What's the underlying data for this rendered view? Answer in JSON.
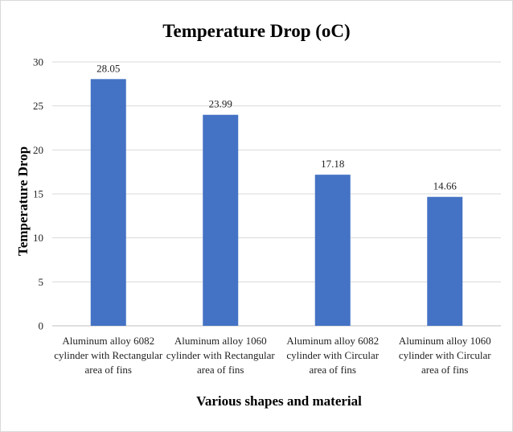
{
  "chart_data": {
    "type": "bar",
    "title": "Temperature Drop (oC)",
    "xlabel": "Various shapes and material",
    "ylabel": "Temperature Drop",
    "categories": [
      [
        "Aluminum alloy 6082",
        "cylinder with Rectangular",
        "area of fins"
      ],
      [
        "Aluminum alloy 1060",
        "cylinder with Rectangular",
        "area of fins"
      ],
      [
        "Aluminum alloy 6082",
        "cylinder with Circular",
        "area of fins"
      ],
      [
        "Aluminum alloy 1060",
        "cylinder with Circular",
        "area of fins"
      ]
    ],
    "values": [
      28.05,
      23.99,
      17.18,
      14.66
    ],
    "data_labels": [
      "28.05",
      "23.99",
      "17.18",
      "14.66"
    ],
    "ylim": [
      0,
      30
    ],
    "yticks": [
      0,
      5,
      10,
      15,
      20,
      25,
      30
    ],
    "grid": true,
    "legend": "none",
    "bar_color": "#4472C4",
    "grid_color": "#d9d9d9"
  }
}
